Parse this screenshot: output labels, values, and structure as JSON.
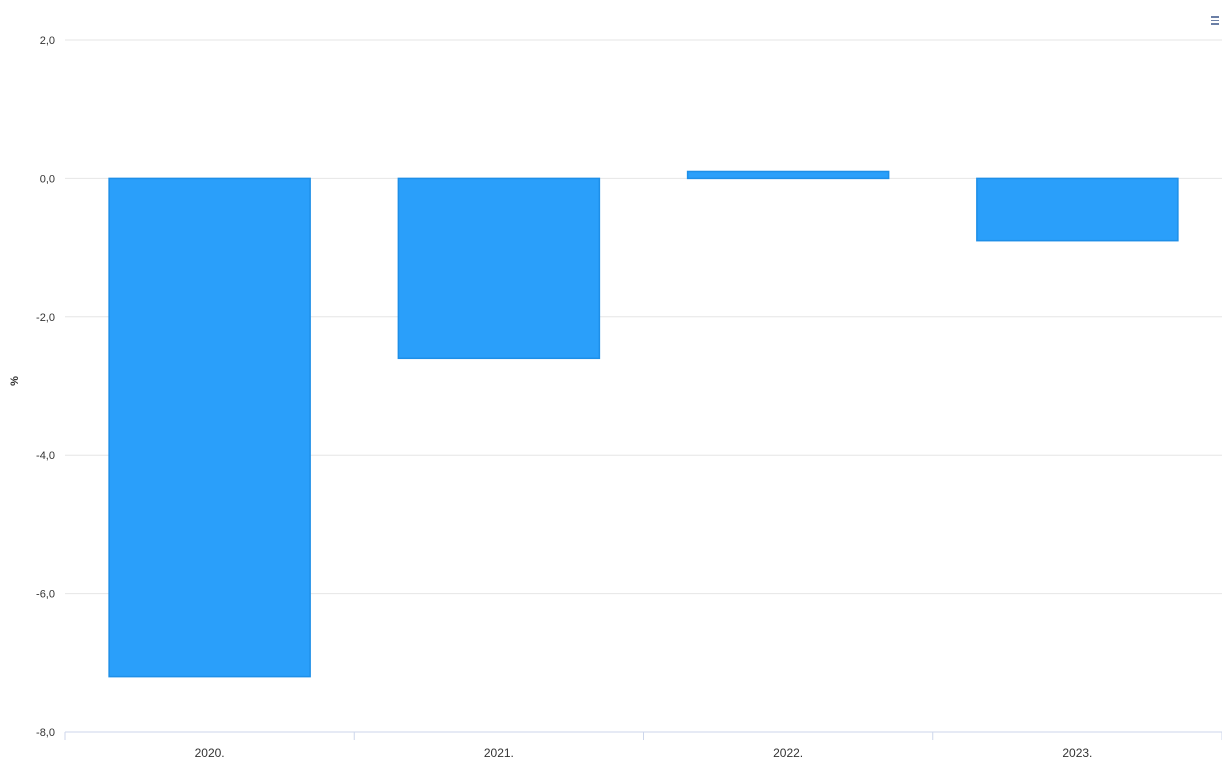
{
  "chart_data": {
    "type": "bar",
    "title": "",
    "xlabel": "",
    "ylabel": "%",
    "categories": [
      "2020.",
      "2021.",
      "2022.",
      "2023."
    ],
    "series": [
      {
        "values": [
          -7.2,
          -2.6,
          0.1,
          -0.9
        ]
      }
    ],
    "ylim": [
      -8,
      2
    ],
    "yticks": [
      2,
      0,
      -2,
      -4,
      -6,
      -8
    ],
    "ytick_labels": [
      "2,0",
      "0,0",
      "-2,0",
      "-4,0",
      "-6,0",
      "-8,0"
    ],
    "grid": true,
    "legend": "none",
    "bar_color": "#2a9ffa",
    "bar_border_color": "#1e8fe8"
  },
  "toolbar": {
    "menu_icon": "hamburger-menu-icon"
  }
}
